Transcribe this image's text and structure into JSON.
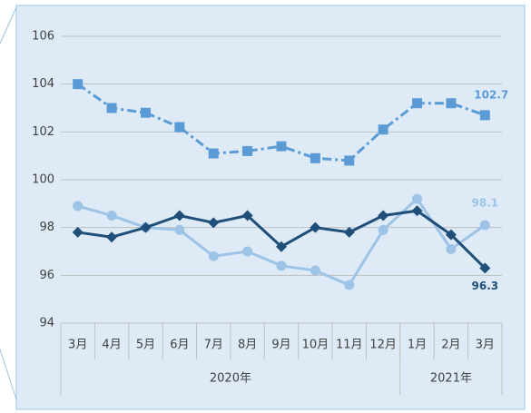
{
  "chart_data": {
    "type": "line",
    "groups": [
      {
        "name": "2020年",
        "categories": [
          "3月",
          "4月",
          "5月",
          "6月",
          "7月",
          "8月",
          "9月",
          "10月",
          "11月",
          "12月"
        ]
      },
      {
        "name": "2021年",
        "categories": [
          "1月",
          "2月",
          "3月"
        ]
      }
    ],
    "ylim": [
      94,
      106
    ],
    "yticks": [
      94,
      96,
      98,
      100,
      102,
      104,
      106
    ],
    "grid": true,
    "series": [
      {
        "color": "#5b9bd5",
        "marker": "square",
        "line_style": "dashdot",
        "values": [
          104.0,
          103.0,
          102.8,
          102.2,
          101.1,
          101.2,
          101.4,
          100.9,
          100.8,
          102.1,
          103.2,
          103.2,
          102.7
        ],
        "value_labels": [
          null,
          null,
          null,
          null,
          null,
          null,
          null,
          null,
          null,
          null,
          null,
          null,
          "102.7"
        ]
      },
      {
        "color": "#9dc3e6",
        "marker": "circle",
        "line_style": "solid",
        "values": [
          98.9,
          98.5,
          98.0,
          97.9,
          96.8,
          97.0,
          96.4,
          96.2,
          95.6,
          97.9,
          99.2,
          97.1,
          98.1
        ],
        "value_labels": [
          null,
          null,
          null,
          null,
          null,
          null,
          null,
          null,
          null,
          null,
          null,
          null,
          "98.1"
        ]
      },
      {
        "color": "#1f4e79",
        "marker": "diamond",
        "line_style": "solid",
        "values": [
          97.8,
          97.6,
          98.0,
          98.5,
          98.2,
          98.5,
          97.2,
          98.0,
          97.8,
          98.5,
          98.7,
          97.7,
          96.3
        ],
        "value_labels": [
          null,
          null,
          null,
          null,
          null,
          null,
          null,
          null,
          null,
          null,
          null,
          null,
          "96.3"
        ]
      }
    ]
  }
}
